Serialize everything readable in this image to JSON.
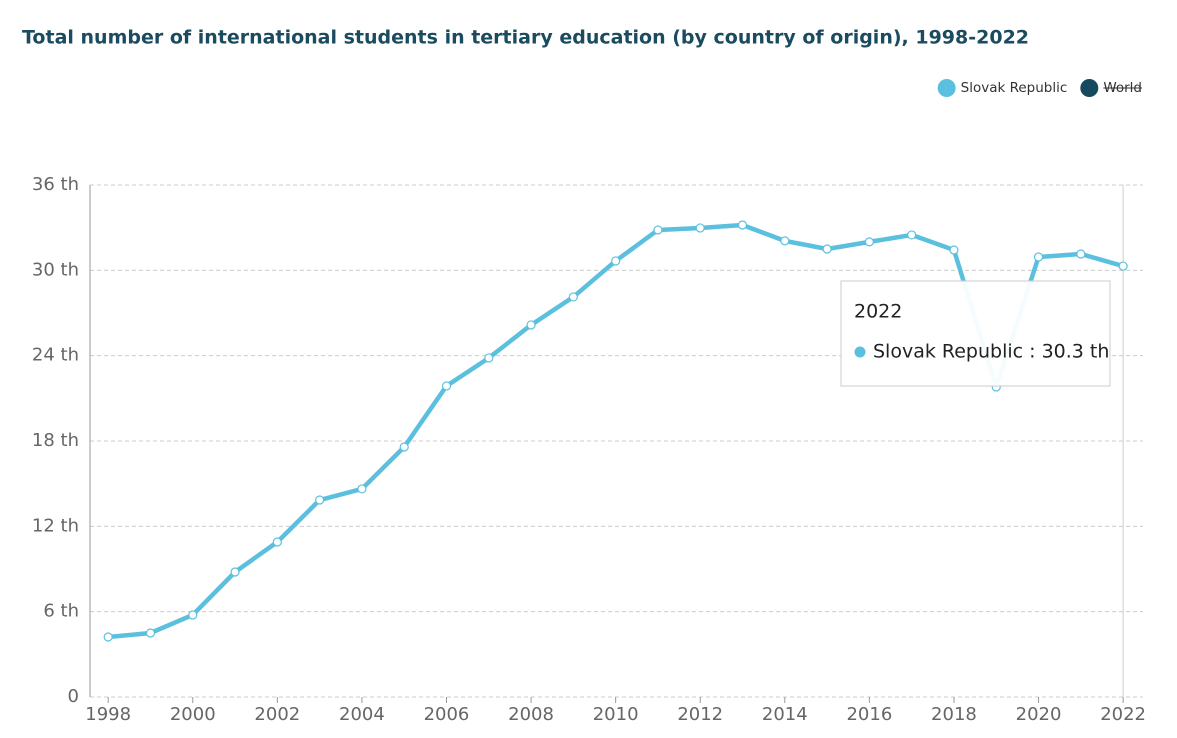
{
  "chart_data": {
    "type": "line",
    "title": "Total number of international students in tertiary education (by country of origin), 1998-2022",
    "x": [
      1998,
      1999,
      2000,
      2001,
      2002,
      2003,
      2004,
      2005,
      2006,
      2007,
      2008,
      2009,
      2010,
      2011,
      2012,
      2013,
      2014,
      2015,
      2016,
      2017,
      2018,
      2019,
      2020,
      2021,
      2022
    ],
    "series": [
      {
        "name": "Slovak Republic",
        "color": "#5bc0de",
        "values": [
          4.22,
          4.5,
          5.77,
          8.79,
          10.9,
          13.85,
          14.63,
          17.58,
          21.87,
          23.84,
          26.16,
          28.13,
          30.66,
          32.84,
          32.98,
          33.19,
          32.07,
          31.5,
          32.0,
          32.49,
          31.43,
          21.8,
          30.94,
          31.15,
          30.3
        ]
      },
      {
        "name": "World",
        "color": "#154a5e",
        "visible": false
      }
    ],
    "xlim": [
      1997.57,
      2022.47
    ],
    "xticks": [
      1998,
      2000,
      2002,
      2004,
      2006,
      2008,
      2010,
      2012,
      2014,
      2016,
      2018,
      2020,
      2022
    ],
    "ylim": [
      0,
      36
    ],
    "yticks": [
      0,
      {
        "value": 6,
        "label": "6 th"
      },
      {
        "value": 12,
        "label": "12 th"
      },
      {
        "value": 18,
        "label": "18 th"
      },
      {
        "value": 24,
        "label": "24 th"
      },
      {
        "value": 30,
        "label": "30 th"
      },
      {
        "value": 36,
        "label": "36 th"
      }
    ],
    "grid": true,
    "legend": "top-right",
    "tooltip": {
      "title": "2022",
      "label": "Slovak Republic : 30.3 th"
    }
  }
}
